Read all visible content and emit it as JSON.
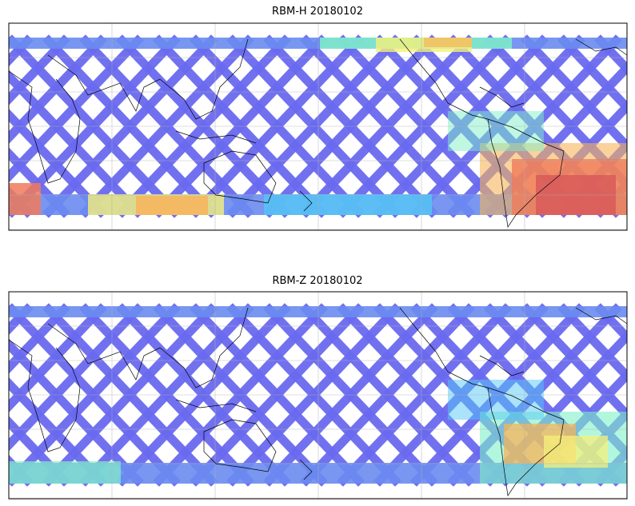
{
  "panels": [
    {
      "title": "RBM-H 20180102",
      "swath_color": "#6a6af0",
      "hotspot_colors": [
        "#6aa0f0",
        "#55c8f5",
        "#7ff0c8",
        "#f5f07a",
        "#f7b45a",
        "#f07a5a",
        "#d85a5a"
      ]
    },
    {
      "title": "RBM-Z 20180102",
      "swath_color": "#6a6af0",
      "hotspot_colors": [
        "#6aa0f0",
        "#55c8f5",
        "#7ff0c8",
        "#f5f07a",
        "#f7b45a"
      ]
    }
  ],
  "map": {
    "projection": "equirectangular",
    "gridlines": true,
    "coastlines": true,
    "orbit_pattern": "crossing-swaths"
  }
}
